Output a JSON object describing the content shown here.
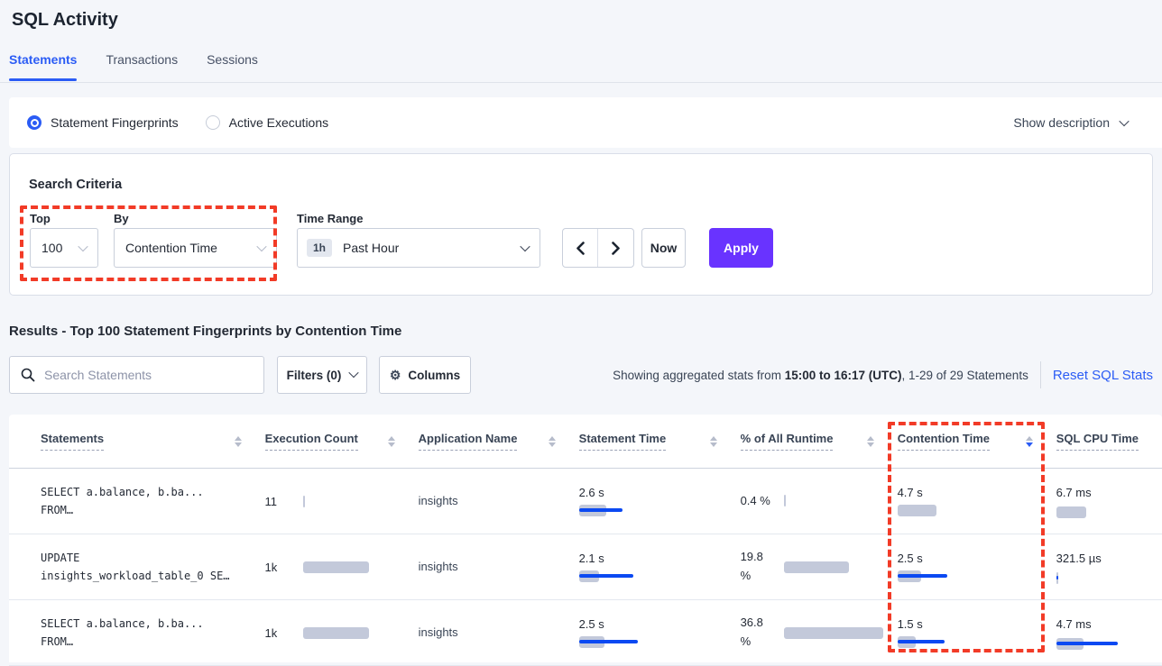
{
  "header": {
    "title": "SQL Activity",
    "tabs": [
      {
        "label": "Statements",
        "active": true
      },
      {
        "label": "Transactions",
        "active": false
      },
      {
        "label": "Sessions",
        "active": false
      }
    ]
  },
  "view_toggle": {
    "options": [
      {
        "label": "Statement Fingerprints",
        "selected": true
      },
      {
        "label": "Active Executions",
        "selected": false
      }
    ],
    "show_description_label": "Show description"
  },
  "search_criteria": {
    "heading": "Search Criteria",
    "top": {
      "label": "Top",
      "value": "100"
    },
    "by": {
      "label": "By",
      "value": "Contention Time"
    },
    "time_range": {
      "label": "Time Range",
      "badge": "1h",
      "value": "Past Hour"
    },
    "now_label": "Now",
    "apply_label": "Apply"
  },
  "results": {
    "heading": "Results - Top 100 Statement Fingerprints by Contention Time",
    "search_placeholder": "Search Statements",
    "filters_label": "Filters (0)",
    "columns_label": "Columns",
    "columns_icon": "gear-icon",
    "stats_prefix": "Showing aggregated stats from ",
    "stats_bold": "15:00 to 16:17 (UTC)",
    "stats_suffix": ", 1-29 of 29 Statements",
    "reset_label": "Reset SQL Stats"
  },
  "table": {
    "columns": [
      {
        "label": "Statements",
        "sort": "none"
      },
      {
        "label": "Execution Count",
        "sort": "none"
      },
      {
        "label": "Application Name",
        "sort": "none"
      },
      {
        "label": "Statement Time",
        "sort": "none"
      },
      {
        "label": "% of All Runtime",
        "sort": "none"
      },
      {
        "label": "Contention Time",
        "sort": "desc"
      },
      {
        "label": "SQL CPU Time",
        "sort": "none"
      }
    ],
    "rows": [
      {
        "statement": [
          "SELECT a.balance, b.ba...",
          "FROM…"
        ],
        "execution_count": "11",
        "execution_bar": {
          "g": 2,
          "b": 0
        },
        "application": "insights",
        "statement_time": "2.6 s",
        "statement_time_bar": {
          "g": 30,
          "b": 48
        },
        "pct_runtime": "0.4 %",
        "pct_runtime_bar": {
          "g": 2,
          "b": 0
        },
        "contention_time": "4.7 s",
        "contention_bar": {
          "g": 43,
          "b": 0
        },
        "sql_cpu_time": "6.7 ms",
        "sql_cpu_bar": {
          "g": 33,
          "b": 0
        }
      },
      {
        "statement": [
          "UPDATE",
          "insights_workload_table_0 SE…"
        ],
        "execution_count": "1k",
        "execution_bar": {
          "g": 73,
          "b": 0
        },
        "application": "insights",
        "statement_time": "2.1 s",
        "statement_time_bar": {
          "g": 22,
          "b": 60
        },
        "pct_runtime": "19.8 %",
        "pct_runtime_bar": {
          "g": 72,
          "b": 0
        },
        "contention_time": "2.5 s",
        "contention_bar": {
          "g": 26,
          "b": 55
        },
        "sql_cpu_time": "321.5 µs",
        "sql_cpu_bar": {
          "g": 2,
          "b": 2
        }
      },
      {
        "statement": [
          "SELECT a.balance, b.ba...",
          "FROM…"
        ],
        "execution_count": "1k",
        "execution_bar": {
          "g": 73,
          "b": 0
        },
        "application": "insights",
        "statement_time": "2.5 s",
        "statement_time_bar": {
          "g": 28,
          "b": 65
        },
        "pct_runtime": "36.8 %",
        "pct_runtime_bar": {
          "g": 110,
          "b": 0
        },
        "contention_time": "1.5 s",
        "contention_bar": {
          "g": 20,
          "b": 52
        },
        "sql_cpu_time": "4.7 ms",
        "sql_cpu_bar": {
          "g": 30,
          "b": 68
        }
      }
    ]
  },
  "annotations": {
    "color": "#f23b27"
  }
}
